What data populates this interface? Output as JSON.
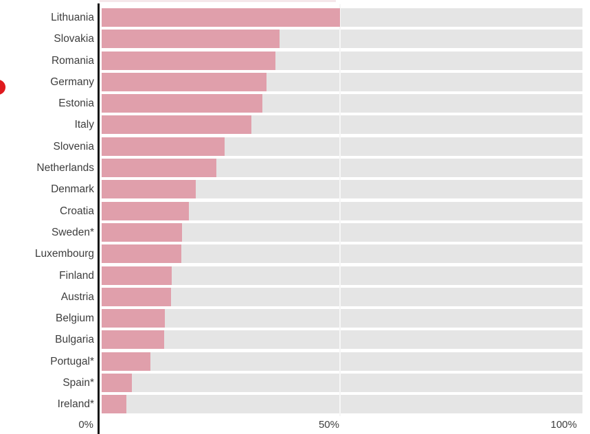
{
  "chart_data": {
    "type": "bar",
    "orientation": "horizontal",
    "title": "",
    "xlabel": "",
    "ylabel": "",
    "unit": "%",
    "xlim": [
      0,
      100
    ],
    "categories": [
      "Lithuania",
      "Slovakia",
      "Romania",
      "Germany",
      "Estonia",
      "Italy",
      "Slovenia",
      "Netherlands",
      "Denmark",
      "Croatia",
      "Sweden*",
      "Luxembourg",
      "Finland",
      "Austria",
      "Belgium",
      "Bulgaria",
      "Portugal*",
      "Spain*",
      "Ireland*"
    ],
    "values": [
      49.5,
      37,
      36.2,
      34.3,
      33.4,
      31.2,
      25.6,
      23.8,
      19.6,
      18.1,
      16.7,
      16.6,
      14.5,
      14.4,
      13.2,
      13,
      10.1,
      6.3,
      5.1
    ],
    "x_ticks": {
      "t0": "0%",
      "t50": "50%",
      "t100": "100%"
    },
    "grid": "vertical line at 50%",
    "legend": "none",
    "cropped_top_row": {
      "value": 49,
      "note": "bottom sliver of a bar from a row cut off by the screenshot top edge"
    },
    "colors": {
      "bar": "#e09fab",
      "bar_track": "#e5e5e5",
      "cropped_top_bar": "#f5e7ea",
      "axis_line": "#161616",
      "gridline": "#f7f7f7",
      "label_text": "#3d3d3d"
    }
  },
  "decorations": {
    "red_dot_color": "#df1a1e"
  }
}
